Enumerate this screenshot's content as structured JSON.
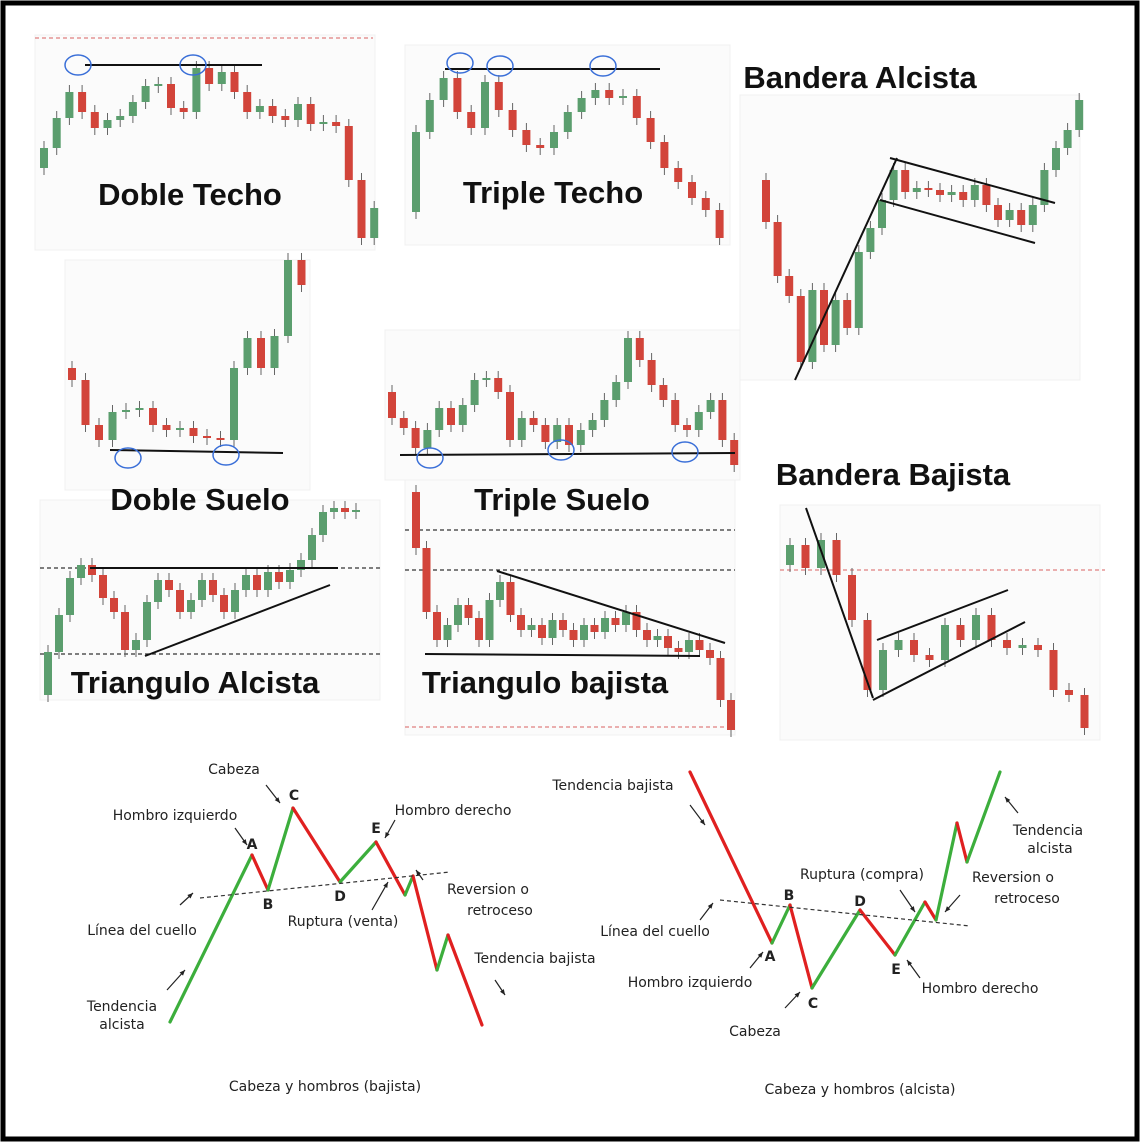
{
  "patterns": [
    {
      "title": "Doble Techo"
    },
    {
      "title": "Triple Techo"
    },
    {
      "title": "Bandera Alcista"
    },
    {
      "title": "Doble Suelo"
    },
    {
      "title": "Triple Suelo"
    },
    {
      "title": "Bandera Bajista"
    },
    {
      "title": "Triangulo Alcista"
    },
    {
      "title": "Triangulo bajista"
    }
  ],
  "head_shoulders_bearish": {
    "caption": "Cabeza y hombros (bajista)",
    "labels": [
      "Cabeza",
      "Hombro izquierdo",
      "Hombro derecho",
      "Reversion o",
      "retroceso",
      "Línea del cuello",
      "Ruptura (venta)",
      "Tendencia bajista",
      "Tendencia",
      "alcista"
    ],
    "points": [
      "A",
      "B",
      "C",
      "D",
      "E"
    ]
  },
  "head_shoulders_bullish": {
    "caption": "Cabeza y hombros (alcista)",
    "labels": [
      "Tendencia bajista",
      "Ruptura (compra)",
      "Reversion o",
      "retroceso",
      "Tendencia",
      "alcista",
      "Línea del cuello",
      "Hombro izquierdo",
      "Hombro derecho",
      "Cabeza"
    ],
    "points": [
      "A",
      "B",
      "C",
      "D",
      "E"
    ]
  }
}
